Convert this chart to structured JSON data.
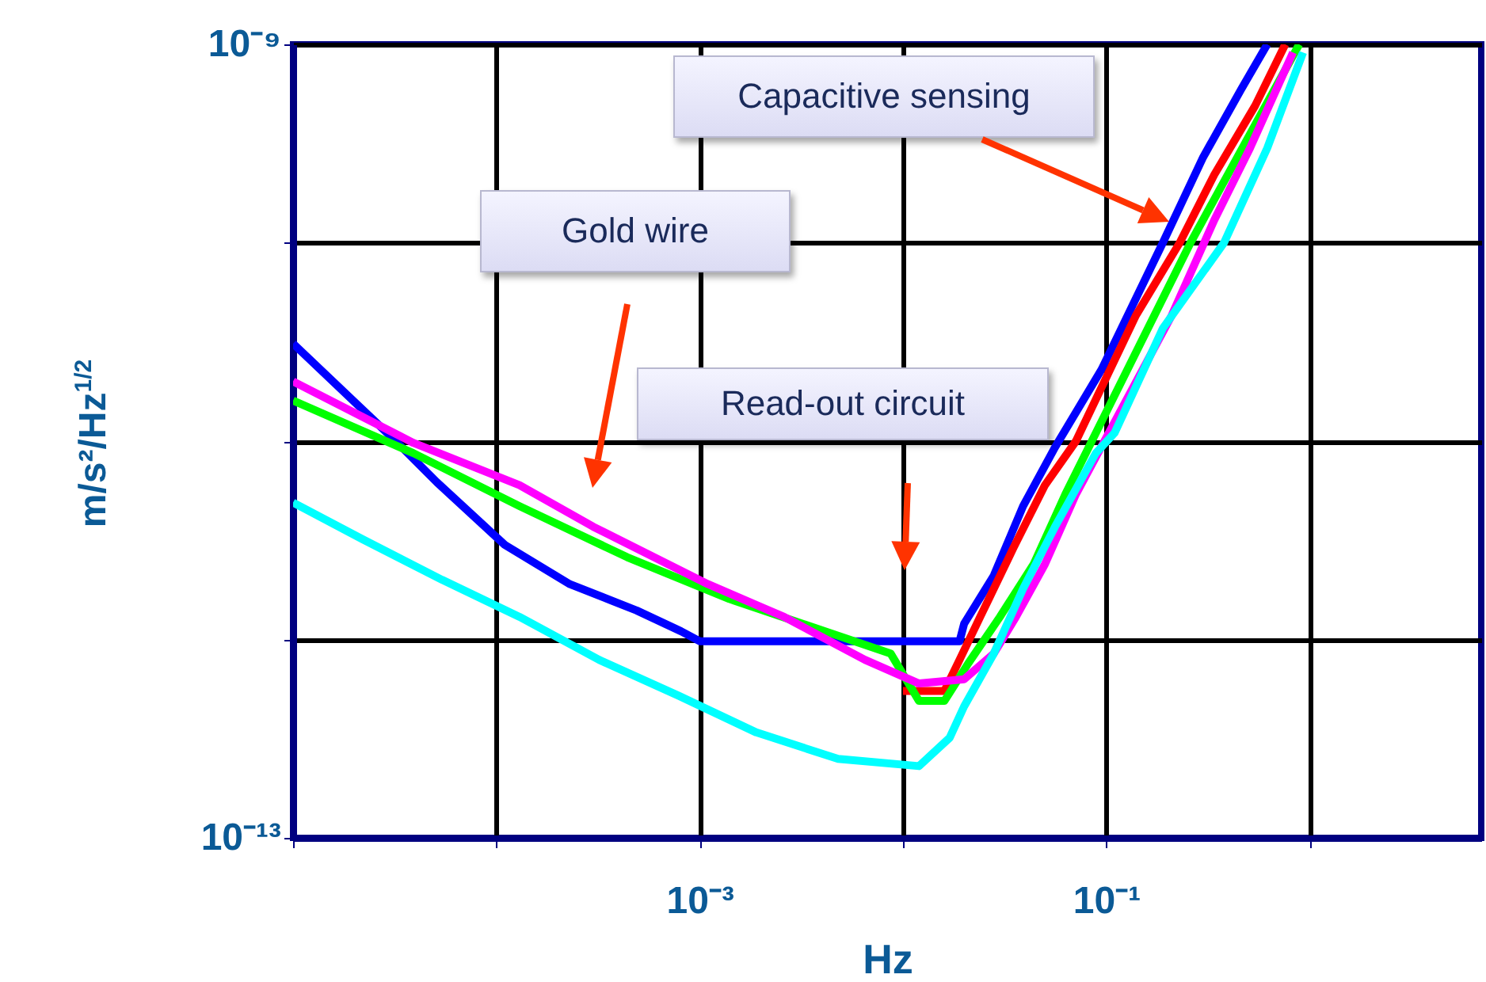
{
  "chart_data": {
    "type": "line",
    "xlabel": "Hz",
    "ylabel": "m/s²/Hz$^{1/2}$",
    "log": "xy",
    "grid": true,
    "line_style": "solid",
    "xlim": [
      1e-05,
      7
    ],
    "ylim": [
      1e-13,
      1e-09
    ],
    "xticks": [
      {
        "value": 1e-05,
        "label": null
      },
      {
        "value": 0.0001,
        "label": null
      },
      {
        "value": 0.001,
        "label": "10⁻³"
      },
      {
        "value": 0.01,
        "label": null
      },
      {
        "value": 0.1,
        "label": "10⁻¹"
      },
      {
        "value": 1,
        "label": null
      }
    ],
    "yticks": [
      {
        "value": 1e-13,
        "label": "10⁻¹³"
      },
      {
        "value": 1e-12,
        "label": null
      },
      {
        "value": 1e-11,
        "label": null
      },
      {
        "value": 1e-10,
        "label": null
      },
      {
        "value": 1e-09,
        "label": "10⁻⁹"
      }
    ],
    "annotations": [
      "Capacitive sensing",
      "Gold wire",
      "Read-out circuit"
    ],
    "series": [
      {
        "color": "#0000ff",
        "x": [
          1e-05,
          3.2e-05,
          5.1e-05,
          0.00011,
          0.00023,
          0.00049,
          0.00081,
          0.001,
          0.019,
          0.02,
          0.028,
          0.039,
          0.056,
          0.095,
          0.19,
          0.3,
          0.46,
          0.62
        ],
        "values": [
          3.1e-11,
          1e-11,
          6.2e-12,
          3e-12,
          1.9e-12,
          1.4e-12,
          1.1e-12,
          9.8e-13,
          9.8e-13,
          1.2e-12,
          2.1e-12,
          4.7e-12,
          9.3e-12,
          2.3e-11,
          1e-10,
          2.7e-10,
          5.9e-10,
          1e-09
        ]
      },
      {
        "color": "#ff0000",
        "x": [
          0.01,
          0.016,
          0.019,
          0.024,
          0.035,
          0.05,
          0.071,
          0.14,
          0.23,
          0.34,
          0.54,
          0.76
        ],
        "values": [
          5.5e-13,
          5.5e-13,
          7.9e-13,
          1.3e-12,
          2.9e-12,
          6e-12,
          1e-11,
          4.3e-11,
          1e-10,
          2.2e-10,
          4.9e-10,
          1e-09
        ]
      },
      {
        "color": "#00ff00",
        "x": [
          1e-05,
          3.9e-05,
          0.00013,
          0.00044,
          0.0014,
          0.0087,
          0.012,
          0.016,
          0.021,
          0.03,
          0.044,
          0.063,
          0.26,
          0.89
        ],
        "values": [
          1.6e-11,
          8.7e-12,
          4.7e-12,
          2.6e-12,
          1.6e-12,
          8.5e-13,
          4.9e-13,
          4.9e-13,
          7.6e-13,
          1.3e-12,
          2.4e-12,
          5.4e-12,
          1e-10,
          1e-09
        ]
      },
      {
        "color": "#ff00ff",
        "x": [
          1e-05,
          3.9e-05,
          0.00013,
          0.0003,
          0.0011,
          0.0026,
          0.0065,
          0.012,
          0.02,
          0.028,
          0.036,
          0.05,
          0.071,
          0.21,
          0.34,
          0.51,
          0.83
        ],
        "values": [
          2e-11,
          9.8e-12,
          6e-12,
          3.7e-12,
          1.9e-12,
          1.3e-12,
          7.9e-13,
          6e-13,
          6.3e-13,
          8.5e-13,
          1.3e-12,
          2.4e-12,
          5.4e-12,
          4.3e-11,
          1.3e-10,
          3e-10,
          9.1e-10
        ]
      },
      {
        "color": "#00ffff",
        "x": [
          1e-05,
          2.2e-05,
          5.4e-05,
          0.00013,
          0.00032,
          0.00079,
          0.0019,
          0.0048,
          0.012,
          0.017,
          0.02,
          0.028,
          0.039,
          0.056,
          0.089,
          0.11,
          0.19,
          0.38,
          0.62,
          0.93
        ],
        "values": [
          4.9e-12,
          3.2e-12,
          2e-12,
          1.3e-12,
          7.9e-13,
          5.2e-13,
          3.4e-13,
          2.5e-13,
          2.3e-13,
          3.2e-13,
          4.6e-13,
          8.5e-13,
          1.8e-12,
          3.7e-12,
          8.7e-12,
          1.1e-11,
          3.7e-11,
          1e-10,
          3e-10,
          9.1e-10
        ]
      }
    ]
  }
}
